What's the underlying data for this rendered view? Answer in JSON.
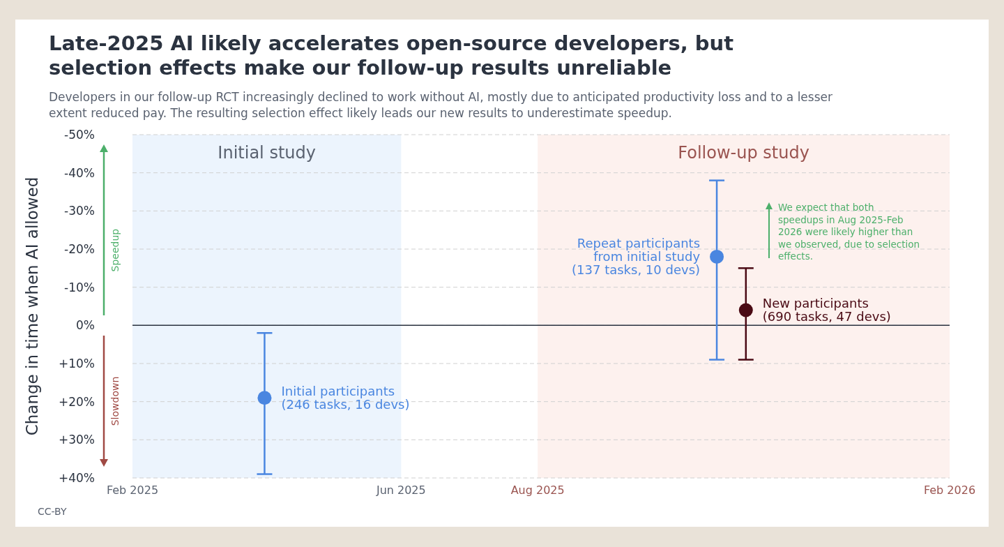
{
  "chart_data": {
    "type": "scatter",
    "title": "Late-2025 AI likely accelerates open-source developers, but selection effects make our follow-up results unreliable",
    "subtitle": "Developers in our follow-up RCT increasingly declined to work without AI, mostly due to anticipated productivity loss and to a lesser extent reduced pay. The resulting selection effect likely leads our new results to underestimate speedup.",
    "ylabel": "Change in time when AI allowed",
    "xlim": [
      "2025-02",
      "2026-02"
    ],
    "xticks": [
      {
        "value": "2025-02",
        "label": "Feb 2025"
      },
      {
        "value": "2025-06",
        "label": "Jun 2025"
      },
      {
        "value": "2025-08",
        "label": "Aug 2025"
      },
      {
        "value": "2026-02",
        "label": "Feb 2026"
      }
    ],
    "ylim": [
      40,
      -50
    ],
    "yticks": [
      {
        "value": -50,
        "label": "-50%"
      },
      {
        "value": -40,
        "label": "-40%"
      },
      {
        "value": -30,
        "label": "-30%"
      },
      {
        "value": -20,
        "label": "-20%"
      },
      {
        "value": -10,
        "label": "-10%"
      },
      {
        "value": 0,
        "label": "0%"
      },
      {
        "value": 10,
        "label": "+10%"
      },
      {
        "value": 20,
        "label": "+20%"
      },
      {
        "value": 30,
        "label": "+30%"
      },
      {
        "value": 40,
        "label": "+40%"
      }
    ],
    "grid": "y",
    "marker": "circle",
    "series": [
      {
        "name": "Initial participants\n(246 tasks, 16 devs)",
        "color": "#4a86e0",
        "x": [
          "2025-04-01"
        ],
        "values": [
          19
        ],
        "errors": [
          [
            2,
            39
          ]
        ]
      },
      {
        "name": "Repeat participants\nfrom initial study\n(137 tasks, 10 devs)",
        "color": "#4a86e0",
        "x": [
          "2025-10-20"
        ],
        "values": [
          -18
        ],
        "errors": [
          [
            -38,
            9
          ]
        ]
      },
      {
        "name": "New participants\n(690 tasks, 47 devs)",
        "color": "#4a0a14",
        "x": [
          "2025-11-02"
        ],
        "values": [
          -4
        ],
        "errors": [
          [
            -15,
            9
          ]
        ]
      }
    ],
    "ref_lines": [
      {
        "axis": "y",
        "value": 0,
        "color": "#2b3340"
      }
    ],
    "bands": [
      {
        "axis": "x",
        "from": "2025-02",
        "to": "2025-06",
        "label": "Initial study",
        "color": "#ecf4fd"
      },
      {
        "axis": "x",
        "from": "2025-08",
        "to": "2026-02",
        "label": "Follow-up study",
        "color": "#fdf1ee"
      }
    ],
    "annotations": [
      "Speedup",
      "Slowdown",
      "We expect that both speedups in Aug 2025-Feb 2026 were likely higher than we observed, due to selection effects.",
      "CC-BY"
    ]
  }
}
